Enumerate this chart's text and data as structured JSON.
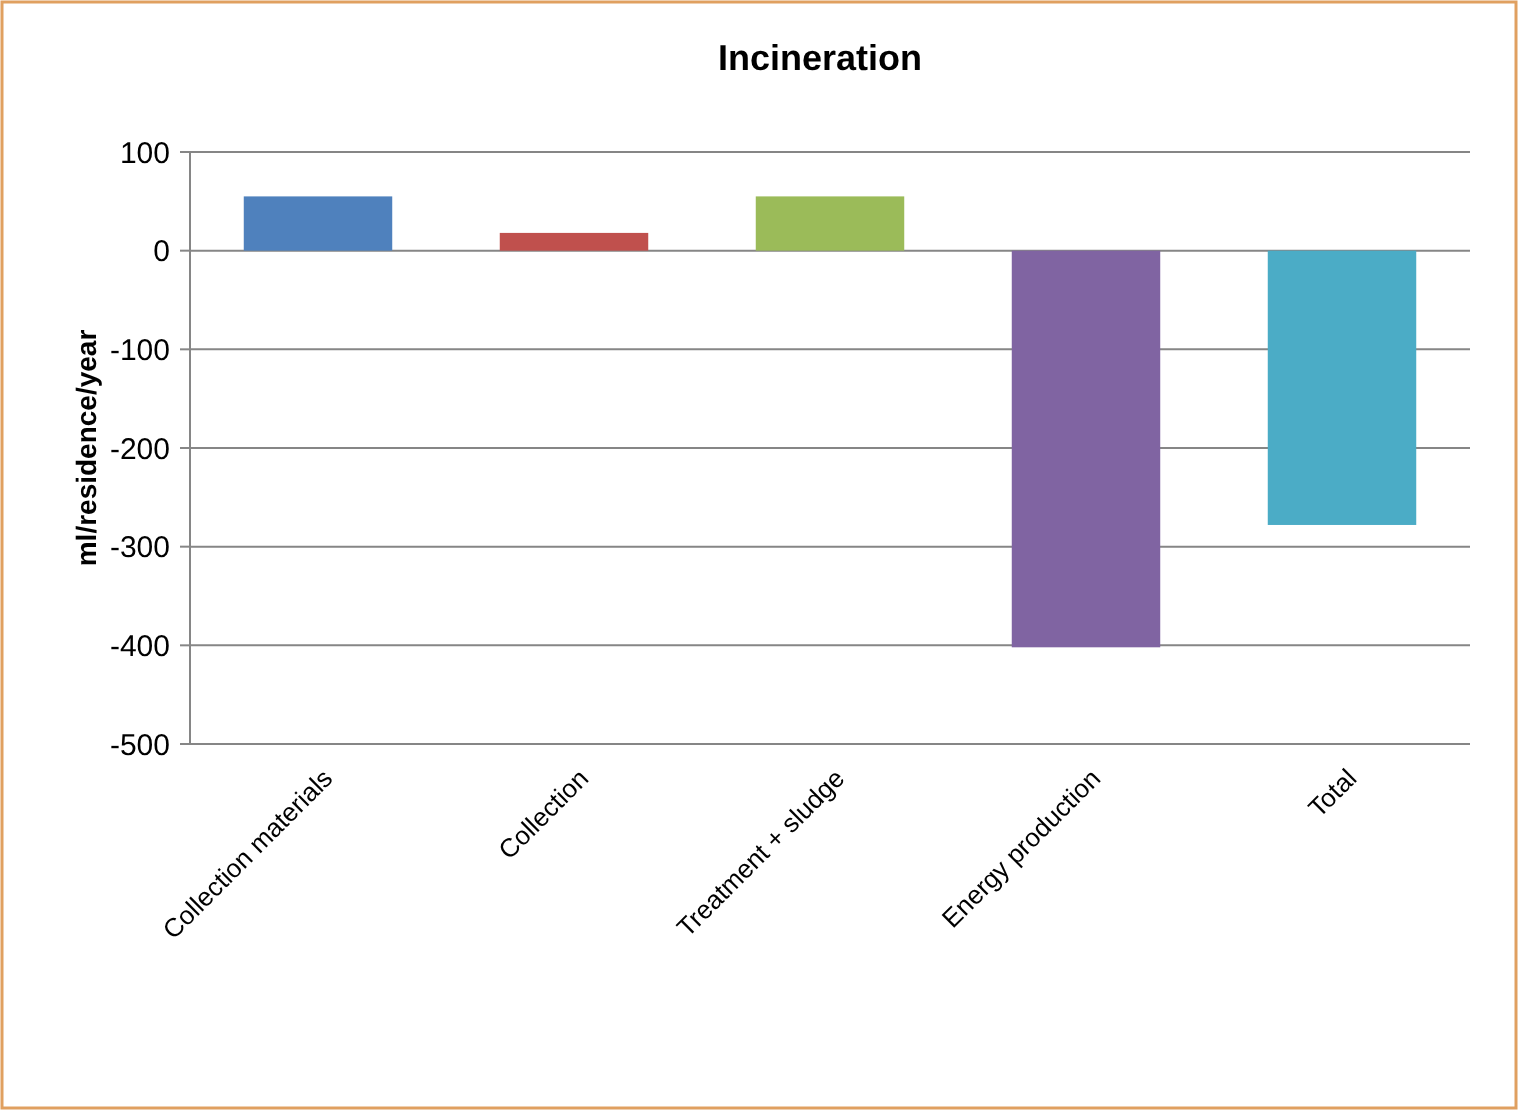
{
  "chart_data": {
    "type": "bar",
    "title": "Incineration",
    "ylabel": "ml/residence/year",
    "categories": [
      "Collection materials",
      "Collection",
      "Treatment + sludge",
      "Energy production",
      "Total"
    ],
    "values": [
      55,
      18,
      55,
      -402,
      -278
    ],
    "colors": [
      "#4f81bd",
      "#c0504d",
      "#9bbb59",
      "#8064a2",
      "#4bacc6"
    ],
    "ylim": [
      -500,
      100
    ],
    "yticks": [
      -500,
      -400,
      -300,
      -200,
      -100,
      0,
      100
    ],
    "grid": "y"
  }
}
